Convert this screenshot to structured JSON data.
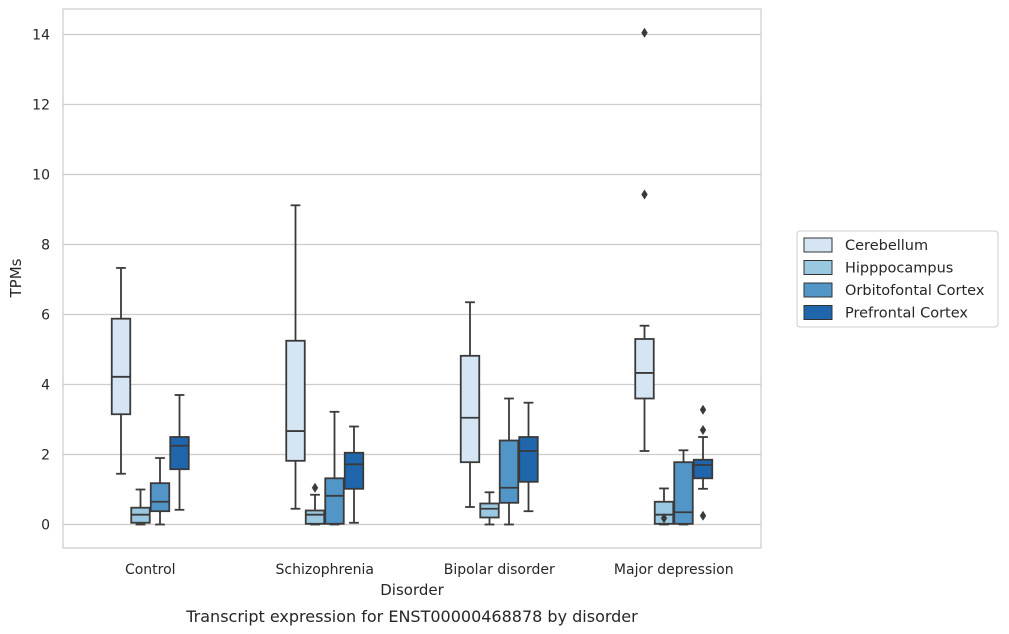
{
  "chart_data": {
    "type": "box",
    "caption": "Transcript expression for ENST00000468878 by disorder",
    "xlabel": "Disorder",
    "ylabel": "TPMs",
    "ylim": [
      -0.7,
      14.75
    ],
    "yticks": [
      0,
      2,
      4,
      6,
      8,
      10,
      12,
      14
    ],
    "grid": "horizontal",
    "legend_position": "right",
    "categories": [
      "Control",
      "Schizophrenia",
      "Bipolar disorder",
      "Major depression"
    ],
    "series": [
      {
        "name": "Cerebellum",
        "color": "#d6e5f4",
        "boxes": [
          {
            "whislo": 1.45,
            "q1": 3.15,
            "med": 4.22,
            "q3": 5.88,
            "whishi": 7.33,
            "fliers": []
          },
          {
            "whislo": 0.45,
            "q1": 1.82,
            "med": 2.67,
            "q3": 5.25,
            "whishi": 9.12,
            "fliers": []
          },
          {
            "whislo": 0.5,
            "q1": 1.78,
            "med": 3.05,
            "q3": 4.82,
            "whishi": 6.35,
            "fliers": []
          },
          {
            "whislo": 2.1,
            "q1": 3.6,
            "med": 4.33,
            "q3": 5.3,
            "whishi": 5.68,
            "fliers": [
              9.43,
              14.05
            ]
          }
        ]
      },
      {
        "name": "Hipppocampus",
        "color": "#9ac8e0",
        "boxes": [
          {
            "whislo": 0.0,
            "q1": 0.05,
            "med": 0.28,
            "q3": 0.48,
            "whishi": 1.0,
            "fliers": []
          },
          {
            "whislo": 0.0,
            "q1": 0.02,
            "med": 0.28,
            "q3": 0.4,
            "whishi": 0.85,
            "fliers": [
              1.05
            ]
          },
          {
            "whislo": 0.0,
            "q1": 0.2,
            "med": 0.45,
            "q3": 0.6,
            "whishi": 0.92,
            "fliers": []
          },
          {
            "whislo": 0.0,
            "q1": 0.02,
            "med": 0.28,
            "q3": 0.65,
            "whishi": 1.03,
            "fliers": [
              0.18
            ]
          }
        ]
      },
      {
        "name": "Orbitofontal Cortex",
        "color": "#5296c8",
        "boxes": [
          {
            "whislo": 0.0,
            "q1": 0.38,
            "med": 0.65,
            "q3": 1.18,
            "whishi": 1.9,
            "fliers": []
          },
          {
            "whislo": 0.0,
            "q1": 0.02,
            "med": 0.82,
            "q3": 1.32,
            "whishi": 3.22,
            "fliers": []
          },
          {
            "whislo": 0.0,
            "q1": 0.62,
            "med": 1.05,
            "q3": 2.4,
            "whishi": 3.6,
            "fliers": []
          },
          {
            "whislo": 0.0,
            "q1": 0.02,
            "med": 0.35,
            "q3": 1.78,
            "whishi": 2.12,
            "fliers": []
          }
        ]
      },
      {
        "name": "Prefrontal Cortex",
        "color": "#2066ac",
        "boxes": [
          {
            "whislo": 0.42,
            "q1": 1.58,
            "med": 2.25,
            "q3": 2.5,
            "whishi": 3.7,
            "fliers": []
          },
          {
            "whislo": 0.05,
            "q1": 1.02,
            "med": 1.72,
            "q3": 2.05,
            "whishi": 2.8,
            "fliers": []
          },
          {
            "whislo": 0.38,
            "q1": 1.22,
            "med": 2.1,
            "q3": 2.5,
            "whishi": 3.48,
            "fliers": []
          },
          {
            "whislo": 1.02,
            "q1": 1.32,
            "med": 1.7,
            "q3": 1.85,
            "whishi": 2.5,
            "fliers": [
              0.25,
              2.7,
              3.28
            ]
          }
        ]
      }
    ]
  }
}
